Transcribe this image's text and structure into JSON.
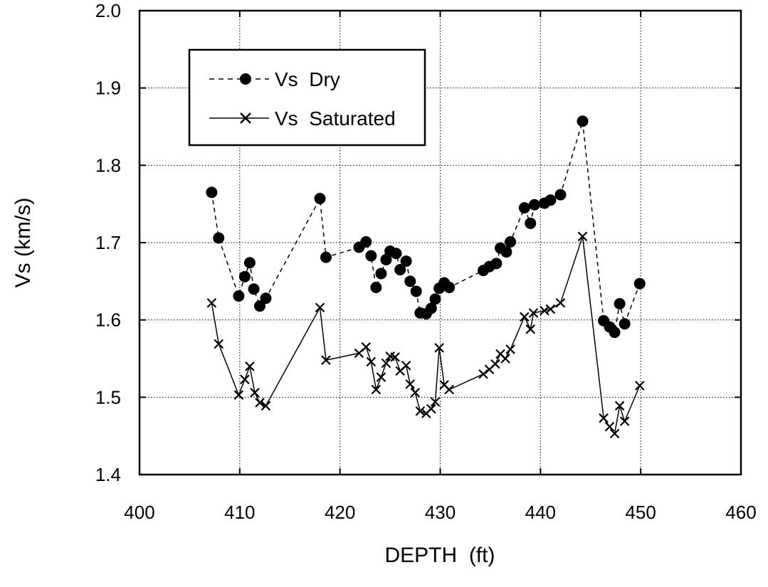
{
  "chart_data": {
    "type": "line",
    "xlabel": "DEPTH  (ft)",
    "ylabel": "Vs (km/s)",
    "xlim": [
      400,
      460
    ],
    "ylim": [
      1.4,
      2.0
    ],
    "xticks": [
      "400",
      "410",
      "420",
      "430",
      "440",
      "450",
      "460"
    ],
    "yticks": [
      "1.4",
      "1.5",
      "1.6",
      "1.7",
      "1.8",
      "1.9",
      "2.0"
    ],
    "grid": true,
    "legend_position": "top-left",
    "series": [
      {
        "name": "Vs  Dry",
        "line_style": "dashed",
        "marker": "filled-circle",
        "x": [
          407.2,
          407.9,
          409.9,
          410.5,
          411.0,
          411.4,
          412.0,
          412.6,
          418.0,
          418.6,
          421.9,
          422.6,
          423.1,
          423.6,
          424.1,
          424.6,
          425.0,
          425.6,
          426.0,
          426.6,
          427.0,
          427.6,
          428.0,
          428.6,
          429.1,
          429.5,
          429.9,
          430.4,
          430.9,
          434.3,
          434.9,
          435.6,
          436.0,
          436.6,
          437.0,
          438.4,
          439.0,
          439.4,
          440.4,
          441.0,
          442.0,
          444.2,
          446.3,
          446.9,
          447.4,
          447.9,
          448.4,
          449.9
        ],
        "y": [
          1.765,
          1.706,
          1.631,
          1.656,
          1.674,
          1.64,
          1.618,
          1.628,
          1.757,
          1.681,
          1.694,
          1.701,
          1.683,
          1.642,
          1.66,
          1.678,
          1.689,
          1.686,
          1.665,
          1.676,
          1.65,
          1.637,
          1.609,
          1.608,
          1.615,
          1.627,
          1.641,
          1.648,
          1.642,
          1.664,
          1.669,
          1.673,
          1.693,
          1.688,
          1.701,
          1.745,
          1.725,
          1.749,
          1.751,
          1.755,
          1.762,
          1.857,
          1.599,
          1.591,
          1.584,
          1.621,
          1.595,
          1.647
        ]
      },
      {
        "name": "Vs  Saturated",
        "line_style": "solid",
        "marker": "x",
        "x": [
          407.2,
          407.9,
          409.9,
          410.5,
          411.0,
          411.5,
          412.0,
          412.6,
          418.0,
          418.6,
          421.9,
          422.6,
          423.1,
          423.6,
          424.1,
          424.6,
          425.0,
          425.5,
          426.0,
          426.6,
          427.0,
          427.5,
          428.0,
          428.6,
          429.1,
          429.5,
          429.9,
          430.4,
          430.9,
          434.3,
          434.9,
          435.5,
          436.0,
          436.5,
          437.0,
          438.4,
          439.0,
          439.3,
          440.4,
          441.0,
          442.0,
          444.2,
          446.3,
          446.9,
          447.4,
          447.9,
          448.4,
          449.9
        ],
        "y": [
          1.622,
          1.569,
          1.503,
          1.523,
          1.54,
          1.506,
          1.493,
          1.489,
          1.616,
          1.548,
          1.557,
          1.565,
          1.546,
          1.51,
          1.526,
          1.544,
          1.553,
          1.552,
          1.534,
          1.541,
          1.517,
          1.506,
          1.482,
          1.479,
          1.485,
          1.494,
          1.564,
          1.516,
          1.51,
          1.53,
          1.536,
          1.543,
          1.556,
          1.55,
          1.562,
          1.604,
          1.588,
          1.609,
          1.612,
          1.614,
          1.622,
          1.708,
          1.473,
          1.462,
          1.453,
          1.489,
          1.469,
          1.515
        ]
      }
    ]
  }
}
